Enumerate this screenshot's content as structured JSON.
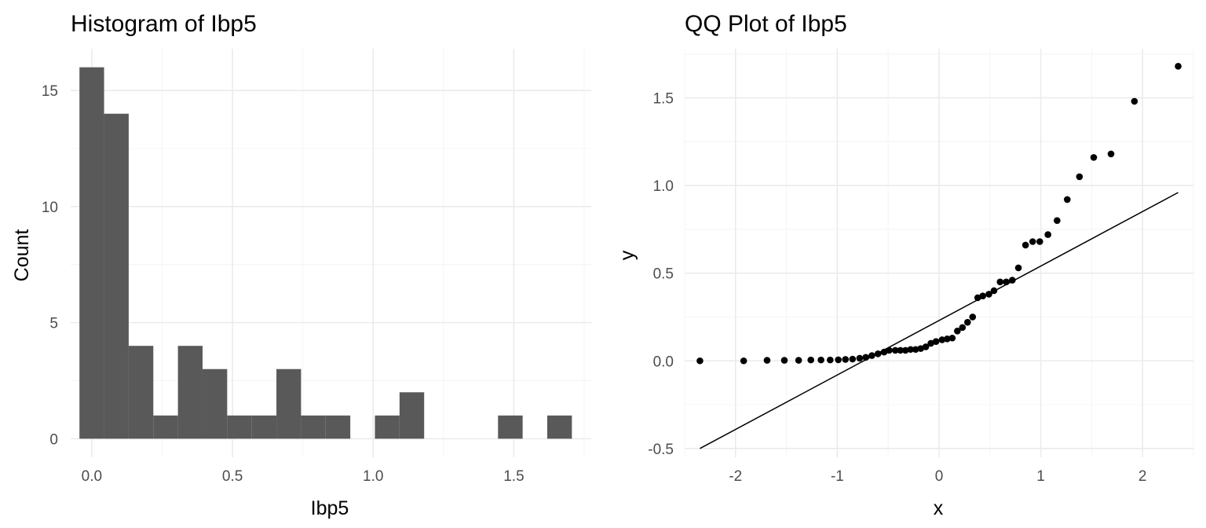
{
  "chart_data": [
    {
      "type": "bar",
      "subtype": "histogram",
      "title": "Histogram of Ibp5",
      "xlabel": "Ibp5",
      "ylabel": "Count",
      "bin_width": 0.0875,
      "bin_centers": [
        0.0,
        0.0875,
        0.175,
        0.2625,
        0.35,
        0.4375,
        0.525,
        0.6125,
        0.7,
        0.7875,
        0.875,
        0.9625,
        1.05,
        1.1375,
        1.225,
        1.3125,
        1.4,
        1.4875,
        1.575,
        1.6625
      ],
      "values": [
        16,
        14,
        4,
        1,
        4,
        3,
        1,
        1,
        3,
        1,
        1,
        0,
        1,
        2,
        0,
        0,
        0,
        1,
        0,
        1
      ],
      "xlim": [
        -0.075,
        1.775
      ],
      "ylim": [
        -0.8,
        16.8
      ],
      "x_ticks": [
        0.0,
        0.5,
        1.0,
        1.5
      ],
      "x_tick_labels": [
        "0.0",
        "0.5",
        "1.0",
        "1.5"
      ],
      "y_ticks": [
        0,
        5,
        10,
        15
      ],
      "y_tick_labels": [
        "0",
        "5",
        "10",
        "15"
      ],
      "grid": true,
      "colors": {
        "bar": "#595959"
      }
    },
    {
      "type": "scatter",
      "subtype": "qq",
      "title": "QQ Plot of Ibp5",
      "xlabel": "x",
      "ylabel": "y",
      "xlim": [
        -2.5,
        2.5
      ],
      "ylim": [
        -0.55,
        1.78
      ],
      "x_ticks": [
        -2,
        -1,
        0,
        1,
        2
      ],
      "x_tick_labels": [
        "-2",
        "-1",
        "0",
        "1",
        "2"
      ],
      "y_ticks": [
        -0.5,
        0.0,
        0.5,
        1.0,
        1.5
      ],
      "y_tick_labels": [
        "-0.5",
        "0.0",
        "0.5",
        "1.0",
        "1.5"
      ],
      "grid": true,
      "points": [
        [
          -2.35,
          0.0
        ],
        [
          -1.92,
          0.0
        ],
        [
          -1.69,
          0.003
        ],
        [
          -1.52,
          0.003
        ],
        [
          -1.38,
          0.003
        ],
        [
          -1.26,
          0.005
        ],
        [
          -1.16,
          0.005
        ],
        [
          -1.07,
          0.005
        ],
        [
          -0.99,
          0.006
        ],
        [
          -0.92,
          0.008
        ],
        [
          -0.85,
          0.01
        ],
        [
          -0.78,
          0.015
        ],
        [
          -0.72,
          0.02
        ],
        [
          -0.66,
          0.03
        ],
        [
          -0.6,
          0.04
        ],
        [
          -0.54,
          0.05
        ],
        [
          -0.49,
          0.06
        ],
        [
          -0.43,
          0.06
        ],
        [
          -0.38,
          0.06
        ],
        [
          -0.33,
          0.06
        ],
        [
          -0.28,
          0.065
        ],
        [
          -0.23,
          0.065
        ],
        [
          -0.18,
          0.07
        ],
        [
          -0.13,
          0.08
        ],
        [
          -0.08,
          0.1
        ],
        [
          -0.03,
          0.11
        ],
        [
          0.03,
          0.12
        ],
        [
          0.08,
          0.125
        ],
        [
          0.13,
          0.13
        ],
        [
          0.18,
          0.17
        ],
        [
          0.23,
          0.19
        ],
        [
          0.28,
          0.22
        ],
        [
          0.33,
          0.25
        ],
        [
          0.38,
          0.36
        ],
        [
          0.43,
          0.37
        ],
        [
          0.49,
          0.38
        ],
        [
          0.54,
          0.4
        ],
        [
          0.6,
          0.45
        ],
        [
          0.66,
          0.45
        ],
        [
          0.72,
          0.46
        ],
        [
          0.78,
          0.53
        ],
        [
          0.85,
          0.66
        ],
        [
          0.92,
          0.68
        ],
        [
          0.99,
          0.68
        ],
        [
          1.07,
          0.72
        ],
        [
          1.16,
          0.8
        ],
        [
          1.26,
          0.92
        ],
        [
          1.38,
          1.05
        ],
        [
          1.52,
          1.16
        ],
        [
          1.69,
          1.18
        ],
        [
          1.92,
          1.48
        ],
        [
          2.35,
          1.68
        ]
      ],
      "reference_line": [
        [
          -2.35,
          -0.5
        ],
        [
          2.35,
          0.96
        ]
      ],
      "colors": {
        "point": "#000000",
        "line": "#000000"
      }
    }
  ]
}
